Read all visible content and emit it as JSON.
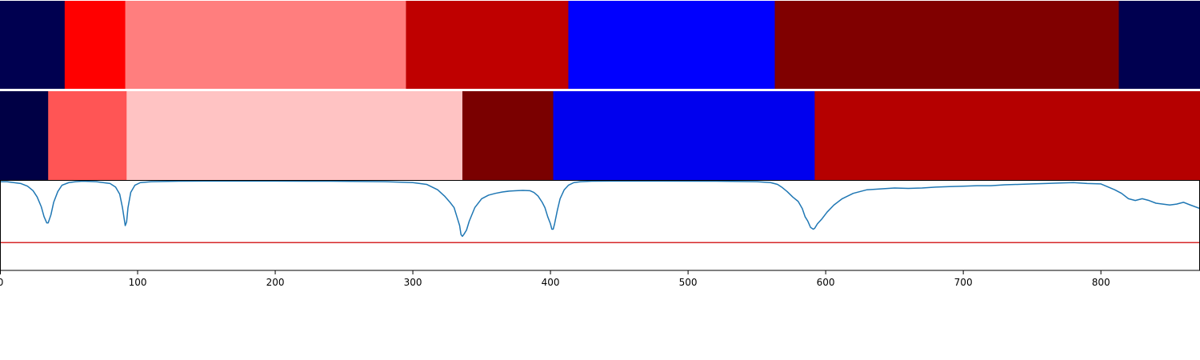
{
  "chart_data": {
    "type": "segmentation-timeline",
    "xlim": [
      0,
      872
    ],
    "x_ticks": [
      0,
      100,
      200,
      300,
      400,
      500,
      600,
      700,
      800
    ],
    "x_tick_labels": [
      "0",
      "100",
      "200",
      "300",
      "400",
      "500",
      "600",
      "700",
      "800"
    ],
    "grid": false,
    "segment_rows": [
      {
        "segments": [
          {
            "start": 0,
            "end": 47,
            "color": "#000050"
          },
          {
            "start": 47,
            "end": 91,
            "color": "#ff0000"
          },
          {
            "start": 91,
            "end": 295,
            "color": "#ff7e7e"
          },
          {
            "start": 295,
            "end": 413,
            "color": "#bf0000"
          },
          {
            "start": 413,
            "end": 563,
            "color": "#0000ff"
          },
          {
            "start": 563,
            "end": 813,
            "color": "#800000"
          },
          {
            "start": 813,
            "end": 872,
            "color": "#000050"
          }
        ]
      },
      {
        "segments": [
          {
            "start": 0,
            "end": 35,
            "color": "#000045"
          },
          {
            "start": 35,
            "end": 92,
            "color": "#ff5555"
          },
          {
            "start": 92,
            "end": 336,
            "color": "#ffc3c3"
          },
          {
            "start": 336,
            "end": 402,
            "color": "#7a0000"
          },
          {
            "start": 402,
            "end": 592,
            "color": "#0000ee"
          },
          {
            "start": 592,
            "end": 872,
            "color": "#b50000"
          }
        ]
      }
    ],
    "line_panel": {
      "ylim": [
        0,
        1
      ],
      "threshold": 0.31,
      "threshold_color": "#d62728",
      "series_color": "#1f77b4",
      "series": {
        "x": [
          0,
          5,
          10,
          15,
          20,
          24,
          27,
          30,
          32,
          34,
          35,
          37,
          39,
          42,
          45,
          50,
          55,
          60,
          70,
          80,
          84,
          87,
          89,
          90,
          91,
          92,
          93,
          95,
          98,
          102,
          110,
          130,
          160,
          200,
          240,
          280,
          300,
          310,
          318,
          323,
          327,
          330,
          332,
          334,
          335,
          336,
          337,
          339,
          341,
          345,
          350,
          355,
          360,
          365,
          370,
          375,
          380,
          385,
          388,
          391,
          394,
          396,
          398,
          400,
          401,
          402,
          403,
          405,
          407,
          410,
          413,
          417,
          422,
          430,
          450,
          480,
          520,
          550,
          560,
          565,
          568,
          572,
          576,
          580,
          583,
          585,
          587,
          589,
          590,
          591,
          592,
          594,
          597,
          601,
          606,
          612,
          620,
          630,
          640,
          650,
          660,
          670,
          680,
          690,
          700,
          710,
          720,
          730,
          740,
          750,
          760,
          770,
          780,
          790,
          800,
          810,
          815,
          820,
          825,
          830,
          835,
          840,
          845,
          850,
          855,
          860,
          865,
          872
        ],
        "y": [
          0.99,
          0.99,
          0.98,
          0.97,
          0.94,
          0.89,
          0.82,
          0.71,
          0.6,
          0.53,
          0.53,
          0.62,
          0.76,
          0.88,
          0.95,
          0.98,
          0.99,
          0.995,
          0.99,
          0.97,
          0.93,
          0.85,
          0.7,
          0.6,
          0.5,
          0.54,
          0.7,
          0.87,
          0.95,
          0.98,
          0.99,
          0.995,
          0.997,
          0.997,
          0.995,
          0.99,
          0.98,
          0.96,
          0.9,
          0.83,
          0.76,
          0.7,
          0.6,
          0.5,
          0.4,
          0.38,
          0.4,
          0.45,
          0.55,
          0.7,
          0.8,
          0.84,
          0.86,
          0.875,
          0.885,
          0.89,
          0.893,
          0.89,
          0.87,
          0.83,
          0.76,
          0.7,
          0.6,
          0.52,
          0.46,
          0.46,
          0.52,
          0.67,
          0.8,
          0.9,
          0.95,
          0.98,
          0.99,
          0.995,
          0.997,
          0.997,
          0.995,
          0.99,
          0.98,
          0.96,
          0.93,
          0.88,
          0.82,
          0.77,
          0.69,
          0.6,
          0.55,
          0.48,
          0.47,
          0.46,
          0.47,
          0.52,
          0.57,
          0.65,
          0.73,
          0.8,
          0.86,
          0.9,
          0.91,
          0.92,
          0.915,
          0.92,
          0.93,
          0.935,
          0.94,
          0.945,
          0.945,
          0.955,
          0.96,
          0.965,
          0.97,
          0.975,
          0.98,
          0.97,
          0.965,
          0.9,
          0.86,
          0.8,
          0.78,
          0.8,
          0.78,
          0.75,
          0.74,
          0.73,
          0.74,
          0.76,
          0.73,
          0.69
        ]
      }
    }
  }
}
